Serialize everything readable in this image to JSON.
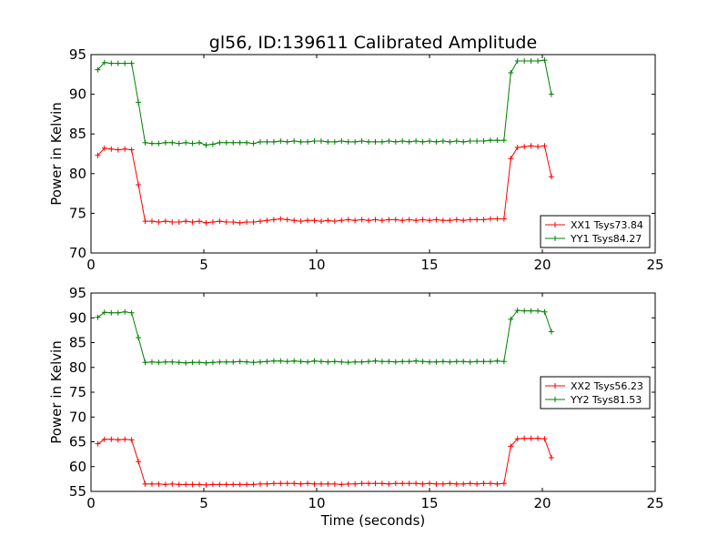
{
  "chart_data": [
    {
      "type": "line",
      "title": "gl56, ID:139611 Calibrated Amplitude",
      "xlabel": "",
      "ylabel": "Power in Kelvin",
      "xlim": [
        0,
        25
      ],
      "ylim": [
        70,
        95
      ],
      "xticks": [
        0,
        5,
        10,
        15,
        20,
        25
      ],
      "yticks": [
        70,
        75,
        80,
        85,
        90,
        95
      ],
      "legend_position": "lower-right",
      "series": [
        {
          "name": "XX1 Tsys73.84",
          "color": "#ff0000",
          "x": [
            0.3,
            0.6,
            0.9,
            1.2,
            1.5,
            1.8,
            2.1,
            2.4,
            2.7,
            3.0,
            3.3,
            3.6,
            3.9,
            4.2,
            4.5,
            4.8,
            5.1,
            5.4,
            5.7,
            6.0,
            6.3,
            6.6,
            6.9,
            7.2,
            7.5,
            7.8,
            8.1,
            8.4,
            8.7,
            9.0,
            9.3,
            9.6,
            9.9,
            10.2,
            10.5,
            10.8,
            11.1,
            11.4,
            11.7,
            12.0,
            12.3,
            12.6,
            12.9,
            13.2,
            13.5,
            13.8,
            14.1,
            14.4,
            14.7,
            15.0,
            15.3,
            15.6,
            15.9,
            16.2,
            16.5,
            16.8,
            17.1,
            17.4,
            17.7,
            18.0,
            18.3,
            18.6,
            18.9,
            19.2,
            19.5,
            19.8,
            20.1,
            20.4
          ],
          "y": [
            82.3,
            83.2,
            83.1,
            83.0,
            83.1,
            83.0,
            78.6,
            74.0,
            74.0,
            73.9,
            74.0,
            73.9,
            73.9,
            74.0,
            73.9,
            74.0,
            73.8,
            73.9,
            74.0,
            73.9,
            73.9,
            73.8,
            73.9,
            73.9,
            74.0,
            74.1,
            74.2,
            74.3,
            74.2,
            74.1,
            74.0,
            74.1,
            74.1,
            74.0,
            74.1,
            74.0,
            74.1,
            74.2,
            74.1,
            74.2,
            74.1,
            74.2,
            74.1,
            74.2,
            74.2,
            74.1,
            74.2,
            74.1,
            74.2,
            74.1,
            74.2,
            74.1,
            74.1,
            74.2,
            74.1,
            74.2,
            74.2,
            74.2,
            74.3,
            74.3,
            74.3,
            81.9,
            83.3,
            83.4,
            83.5,
            83.4,
            83.5,
            79.6
          ]
        },
        {
          "name": "YY1 Tsys84.27",
          "color": "#008000",
          "x": [
            0.3,
            0.6,
            0.9,
            1.2,
            1.5,
            1.8,
            2.1,
            2.4,
            2.7,
            3.0,
            3.3,
            3.6,
            3.9,
            4.2,
            4.5,
            4.8,
            5.1,
            5.4,
            5.7,
            6.0,
            6.3,
            6.6,
            6.9,
            7.2,
            7.5,
            7.8,
            8.1,
            8.4,
            8.7,
            9.0,
            9.3,
            9.6,
            9.9,
            10.2,
            10.5,
            10.8,
            11.1,
            11.4,
            11.7,
            12.0,
            12.3,
            12.6,
            12.9,
            13.2,
            13.5,
            13.8,
            14.1,
            14.4,
            14.7,
            15.0,
            15.3,
            15.6,
            15.9,
            16.2,
            16.5,
            16.8,
            17.1,
            17.4,
            17.7,
            18.0,
            18.3,
            18.6,
            18.9,
            19.2,
            19.5,
            19.8,
            20.1,
            20.4
          ],
          "y": [
            93.1,
            94.0,
            93.9,
            93.9,
            93.9,
            93.9,
            89.0,
            83.9,
            83.8,
            83.8,
            83.9,
            83.9,
            83.8,
            83.9,
            83.8,
            83.9,
            83.6,
            83.7,
            83.9,
            83.9,
            83.9,
            83.9,
            83.9,
            83.8,
            84.0,
            84.0,
            84.0,
            84.1,
            84.0,
            84.1,
            84.0,
            84.0,
            84.1,
            84.1,
            84.0,
            84.0,
            84.1,
            84.0,
            84.0,
            84.1,
            84.0,
            84.0,
            84.0,
            84.1,
            84.0,
            84.1,
            84.0,
            84.1,
            84.0,
            84.1,
            84.0,
            84.1,
            84.0,
            84.1,
            84.0,
            84.1,
            84.1,
            84.1,
            84.2,
            84.2,
            84.2,
            92.7,
            94.2,
            94.2,
            94.2,
            94.2,
            94.3,
            90.0
          ]
        }
      ]
    },
    {
      "type": "line",
      "title": "",
      "xlabel": "Time (seconds)",
      "ylabel": "Power in Kelvin",
      "xlim": [
        0,
        25
      ],
      "ylim": [
        55,
        95
      ],
      "xticks": [
        0,
        5,
        10,
        15,
        20,
        25
      ],
      "yticks": [
        55,
        60,
        65,
        70,
        75,
        80,
        85,
        90,
        95
      ],
      "legend_position": "center-right",
      "series": [
        {
          "name": "XX2 Tsys56.23",
          "color": "#ff0000",
          "x": [
            0.3,
            0.6,
            0.9,
            1.2,
            1.5,
            1.8,
            2.1,
            2.4,
            2.7,
            3.0,
            3.3,
            3.6,
            3.9,
            4.2,
            4.5,
            4.8,
            5.1,
            5.4,
            5.7,
            6.0,
            6.3,
            6.6,
            6.9,
            7.2,
            7.5,
            7.8,
            8.1,
            8.4,
            8.7,
            9.0,
            9.3,
            9.6,
            9.9,
            10.2,
            10.5,
            10.8,
            11.1,
            11.4,
            11.7,
            12.0,
            12.3,
            12.6,
            12.9,
            13.2,
            13.5,
            13.8,
            14.1,
            14.4,
            14.7,
            15.0,
            15.3,
            15.6,
            15.9,
            16.2,
            16.5,
            16.8,
            17.1,
            17.4,
            17.7,
            18.0,
            18.3,
            18.6,
            18.9,
            19.2,
            19.5,
            19.8,
            20.1,
            20.4
          ],
          "y": [
            64.6,
            65.5,
            65.5,
            65.4,
            65.5,
            65.4,
            61.0,
            56.5,
            56.5,
            56.5,
            56.4,
            56.5,
            56.4,
            56.4,
            56.4,
            56.4,
            56.3,
            56.4,
            56.4,
            56.4,
            56.4,
            56.4,
            56.4,
            56.4,
            56.5,
            56.5,
            56.6,
            56.6,
            56.6,
            56.6,
            56.5,
            56.6,
            56.5,
            56.5,
            56.5,
            56.5,
            56.4,
            56.5,
            56.5,
            56.6,
            56.6,
            56.6,
            56.6,
            56.5,
            56.6,
            56.6,
            56.6,
            56.6,
            56.5,
            56.6,
            56.5,
            56.5,
            56.6,
            56.5,
            56.5,
            56.6,
            56.5,
            56.6,
            56.6,
            56.5,
            56.6,
            64.1,
            65.6,
            65.7,
            65.7,
            65.7,
            65.6,
            61.8
          ]
        },
        {
          "name": "YY2 Tsys81.53",
          "color": "#008000",
          "x": [
            0.3,
            0.6,
            0.9,
            1.2,
            1.5,
            1.8,
            2.1,
            2.4,
            2.7,
            3.0,
            3.3,
            3.6,
            3.9,
            4.2,
            4.5,
            4.8,
            5.1,
            5.4,
            5.7,
            6.0,
            6.3,
            6.6,
            6.9,
            7.2,
            7.5,
            7.8,
            8.1,
            8.4,
            8.7,
            9.0,
            9.3,
            9.6,
            9.9,
            10.2,
            10.5,
            10.8,
            11.1,
            11.4,
            11.7,
            12.0,
            12.3,
            12.6,
            12.9,
            13.2,
            13.5,
            13.8,
            14.1,
            14.4,
            14.7,
            15.0,
            15.3,
            15.6,
            15.9,
            16.2,
            16.5,
            16.8,
            17.1,
            17.4,
            17.7,
            18.0,
            18.3,
            18.6,
            18.9,
            19.2,
            19.5,
            19.8,
            20.1,
            20.4
          ],
          "y": [
            90.1,
            91.1,
            91.0,
            91.0,
            91.2,
            91.0,
            86.0,
            81.0,
            81.1,
            81.0,
            81.1,
            81.1,
            81.0,
            80.9,
            81.0,
            81.0,
            80.9,
            81.0,
            81.1,
            81.1,
            81.1,
            81.2,
            81.1,
            81.0,
            81.1,
            81.2,
            81.3,
            81.3,
            81.2,
            81.3,
            81.2,
            81.1,
            81.3,
            81.2,
            81.1,
            81.2,
            81.1,
            81.0,
            81.1,
            81.1,
            81.2,
            81.3,
            81.2,
            81.2,
            81.1,
            81.2,
            81.2,
            81.3,
            81.2,
            81.1,
            81.1,
            81.2,
            81.1,
            81.2,
            81.2,
            81.1,
            81.2,
            81.2,
            81.2,
            81.3,
            81.2,
            89.7,
            91.5,
            91.4,
            91.4,
            91.4,
            91.2,
            87.2
          ]
        }
      ]
    }
  ]
}
